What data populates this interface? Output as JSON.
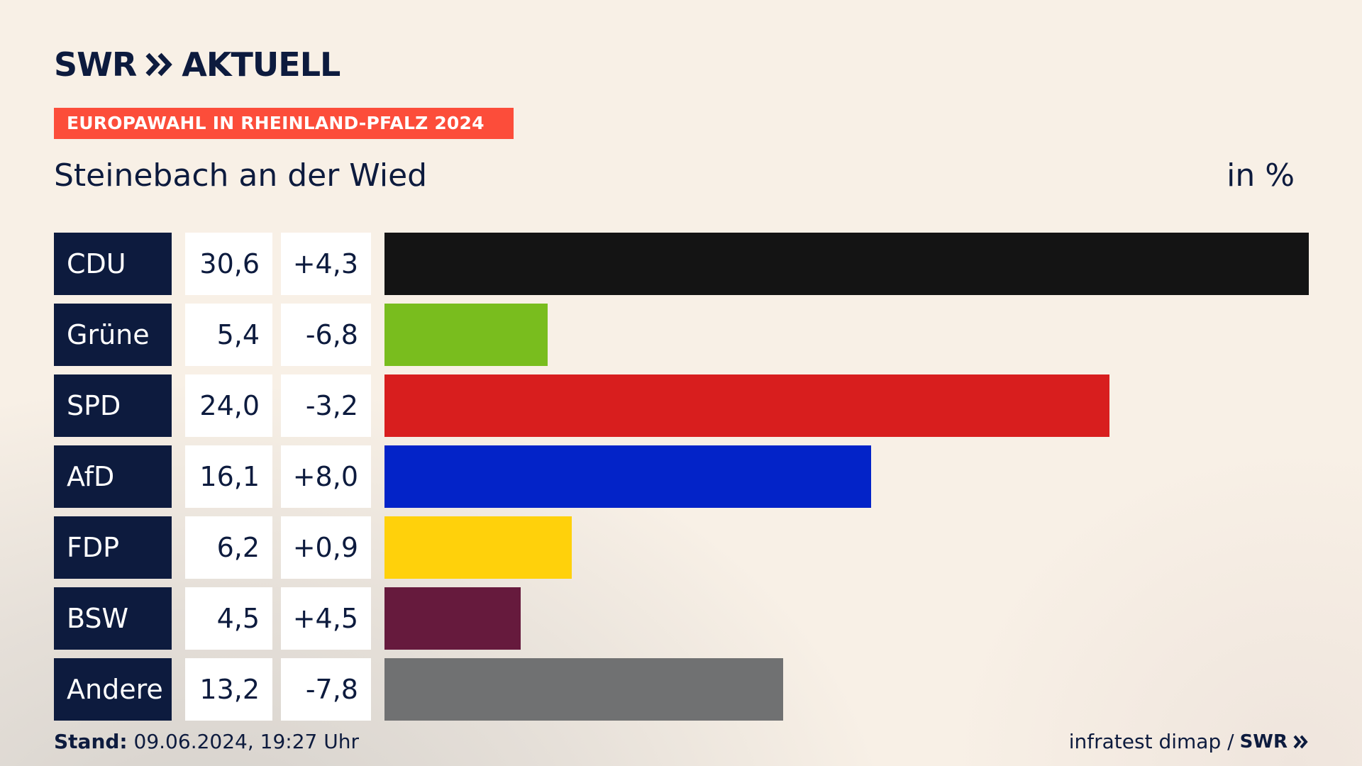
{
  "brand": {
    "name": "SWR",
    "section": "AKTUELL"
  },
  "banner": "EUROPAWAHL IN RHEINLAND-PFALZ 2024",
  "place": "Steinebach an der Wied",
  "unit": "in %",
  "footer": {
    "stand_label": "Stand:",
    "stand_value": "09.06.2024, 19:27 Uhr",
    "source": "infratest dimap /",
    "source_brand": "SWR"
  },
  "chart_data": {
    "type": "bar",
    "orientation": "horizontal",
    "categories": [
      "CDU",
      "Grüne",
      "SPD",
      "AfD",
      "FDP",
      "BSW",
      "Andere"
    ],
    "values": [
      30.6,
      5.4,
      24.0,
      16.1,
      6.2,
      4.5,
      13.2
    ],
    "value_labels": [
      "30,6",
      "5,4",
      "24,0",
      "16,1",
      "6,2",
      "4,5",
      "13,2"
    ],
    "diff_labels": [
      "+4,3",
      "-6,8",
      "-3,2",
      "+8,0",
      "+0,9",
      "+4,5",
      "-7,8"
    ],
    "colors": [
      "#141414",
      "#79bd1e",
      "#d81e1e",
      "#0323c8",
      "#ffd10b",
      "#661a3d",
      "#707172"
    ],
    "xlim": [
      0,
      30.6
    ]
  }
}
